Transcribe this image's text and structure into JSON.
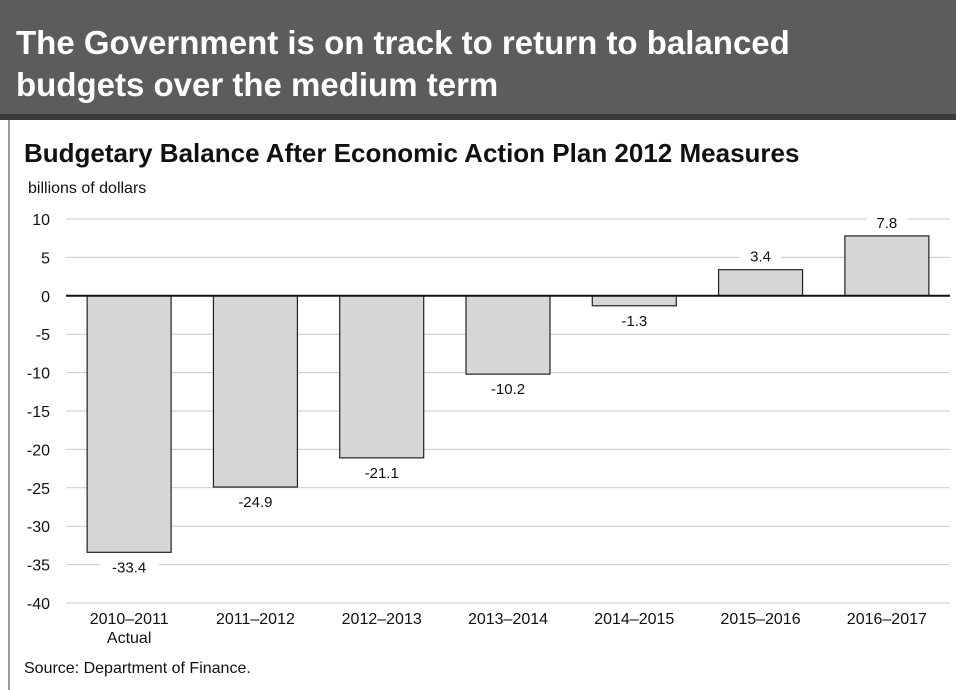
{
  "header": {
    "title": "The Government is on track to return to balanced budgets over the medium term"
  },
  "chart_data": {
    "type": "bar",
    "title": "Budgetary Balance After Economic Action Plan 2012 Measures",
    "ylabel": "billions of dollars",
    "xlabel": "",
    "categories": [
      "2010–2011 Actual",
      "2011–2012",
      "2012–2013",
      "2013–2014",
      "2014–2015",
      "2015–2016",
      "2016–2017"
    ],
    "category_lines": [
      [
        "2010–2011",
        "Actual"
      ],
      [
        "2011–2012"
      ],
      [
        "2012–2013"
      ],
      [
        "2013–2014"
      ],
      [
        "2014–2015"
      ],
      [
        "2015–2016"
      ],
      [
        "2016–2017"
      ]
    ],
    "values": [
      -33.4,
      -24.9,
      -21.1,
      -10.2,
      -1.3,
      3.4,
      7.8
    ],
    "data_labels": [
      "-33.4",
      "-24.9",
      "-21.1",
      "-10.2",
      "-1.3",
      "3.4",
      "7.8"
    ],
    "ylim": [
      -40,
      10
    ],
    "yticks": [
      10,
      5,
      0,
      -5,
      -10,
      -15,
      -20,
      -25,
      -30,
      -35,
      -40
    ],
    "grid": true,
    "colors": {
      "bar_fill": "#d6d6d6",
      "bar_stroke": "#222222",
      "grid": "#c8c8c8",
      "zero_line": "#111111"
    }
  },
  "footer": {
    "source": "Source: Department of Finance."
  }
}
